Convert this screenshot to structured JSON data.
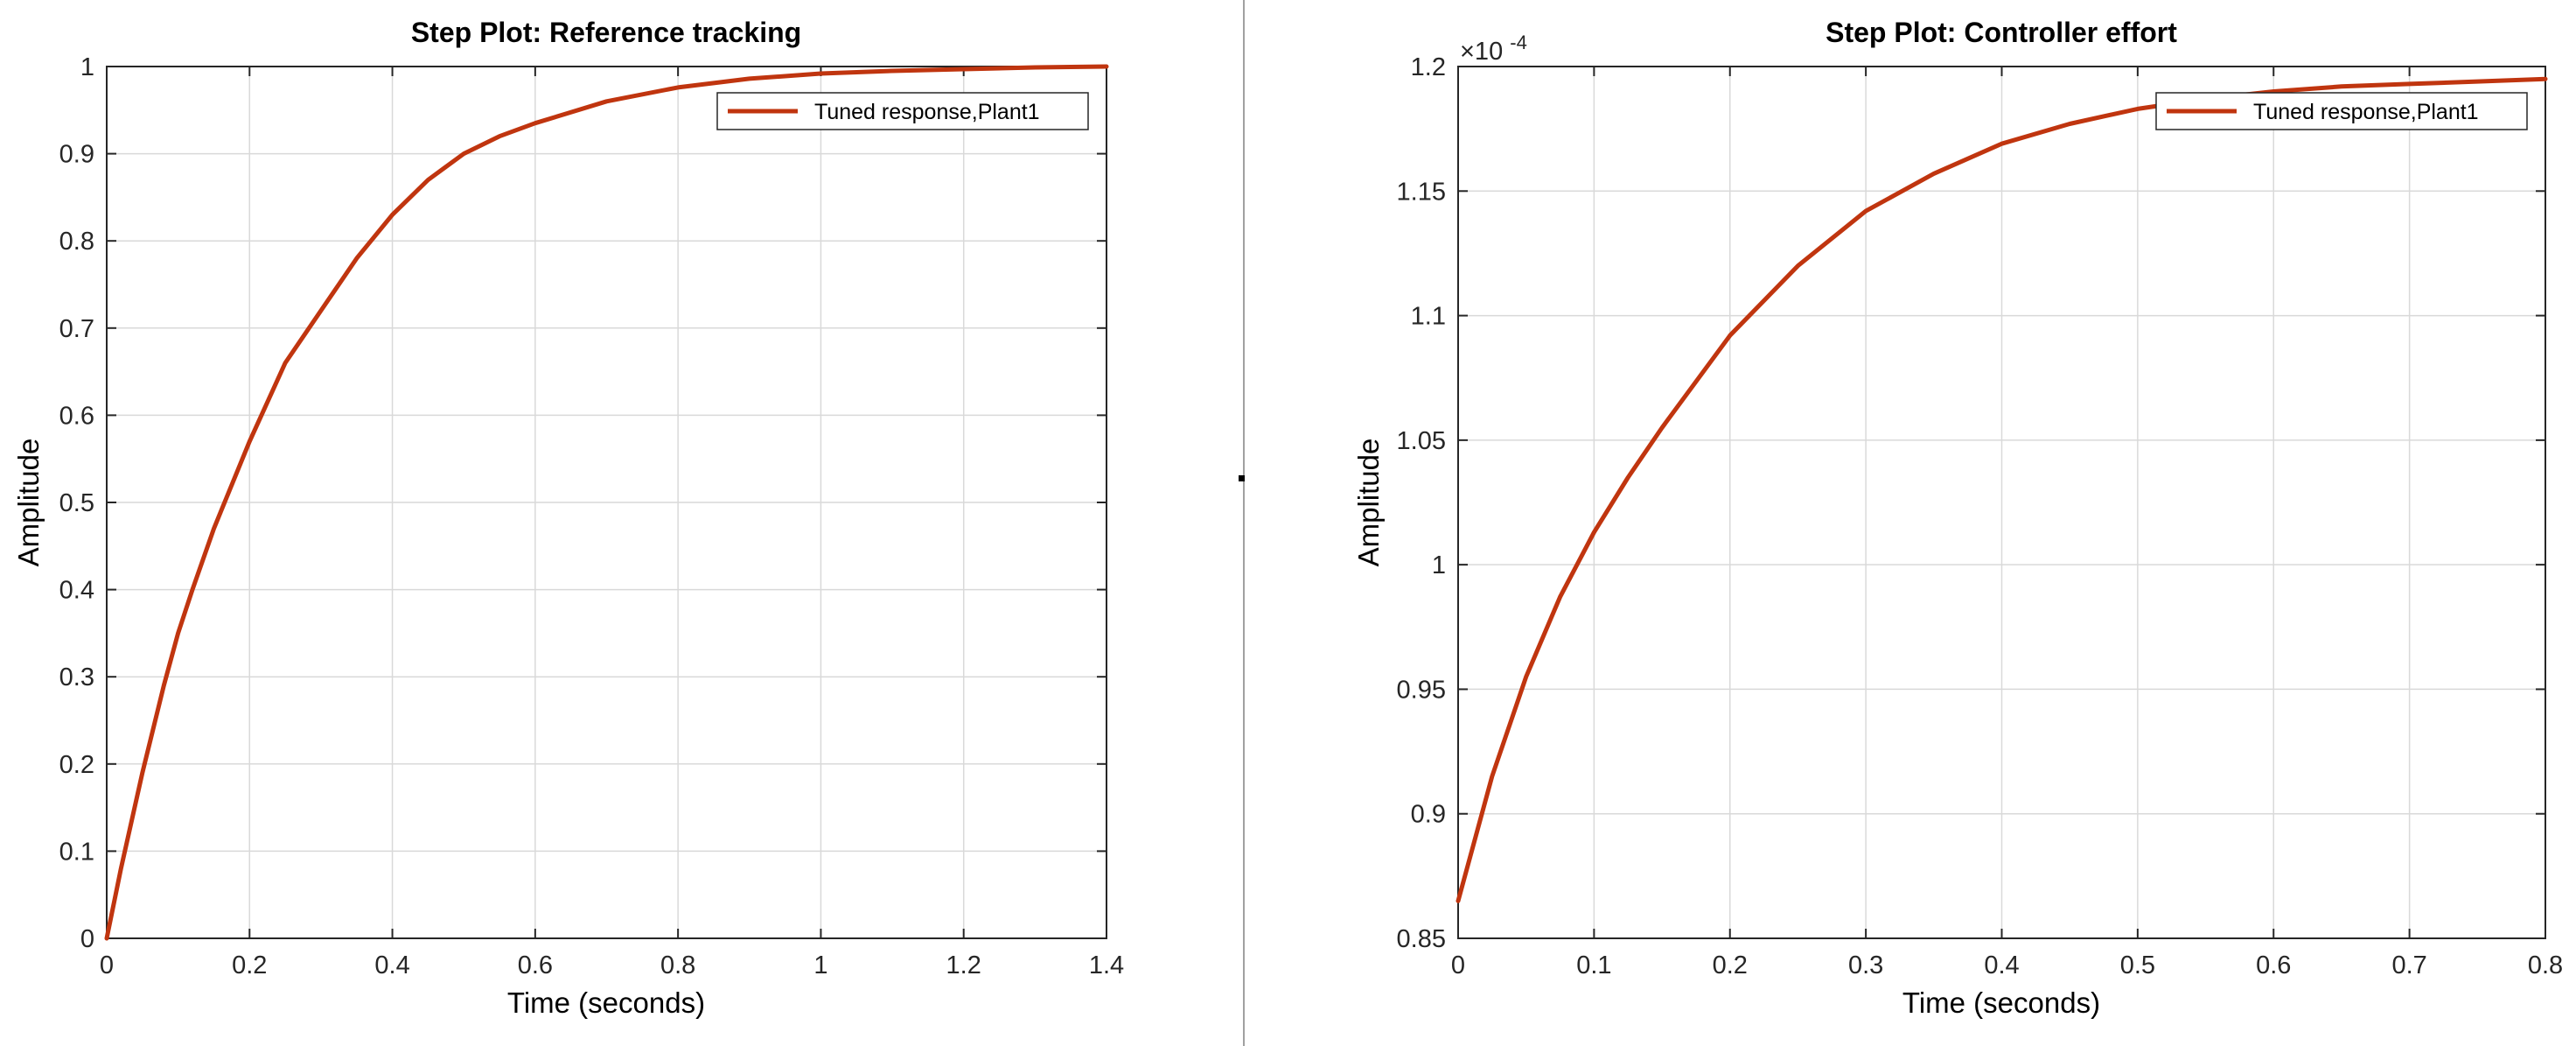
{
  "chart_data": [
    {
      "type": "line",
      "title": "Step Plot: Reference tracking",
      "xlabel": "Time (seconds)",
      "ylabel": "Amplitude",
      "xlim": [
        0,
        1.4
      ],
      "ylim": [
        0,
        1
      ],
      "xticks": [
        "0",
        "0.2",
        "0.4",
        "0.6",
        "0.8",
        "1",
        "1.2",
        "1.4"
      ],
      "yticks": [
        "0",
        "0.1",
        "0.2",
        "0.3",
        "0.4",
        "0.5",
        "0.6",
        "0.7",
        "0.8",
        "0.9",
        "1"
      ],
      "grid": true,
      "legend": {
        "position": "top-right",
        "entries": [
          "Tuned response,Plant1"
        ]
      },
      "series": [
        {
          "name": "Tuned response,Plant1",
          "color": "#c0350f",
          "x": [
            0,
            0.02,
            0.05,
            0.08,
            0.1,
            0.12,
            0.15,
            0.2,
            0.25,
            0.3,
            0.35,
            0.4,
            0.45,
            0.5,
            0.55,
            0.6,
            0.7,
            0.8,
            0.9,
            1.0,
            1.1,
            1.2,
            1.3,
            1.4
          ],
          "y": [
            0,
            0.08,
            0.19,
            0.29,
            0.35,
            0.4,
            0.47,
            0.57,
            0.66,
            0.72,
            0.78,
            0.83,
            0.87,
            0.9,
            0.92,
            0.935,
            0.96,
            0.976,
            0.986,
            0.992,
            0.995,
            0.997,
            0.999,
            1.0
          ]
        }
      ]
    },
    {
      "type": "line",
      "title": "Step Plot: Controller effort",
      "xlabel": "Time (seconds)",
      "ylabel": "Amplitude",
      "exponent_label": "×10^-4",
      "exponent_base": "×10",
      "exponent_power": "-4",
      "xlim": [
        0,
        0.8
      ],
      "ylim": [
        0.85,
        1.2
      ],
      "xticks": [
        "0",
        "0.1",
        "0.2",
        "0.3",
        "0.4",
        "0.5",
        "0.6",
        "0.7",
        "0.8"
      ],
      "yticks": [
        "0.85",
        "0.9",
        "0.95",
        "1",
        "1.05",
        "1.1",
        "1.15",
        "1.2"
      ],
      "grid": true,
      "legend": {
        "position": "top-right",
        "entries": [
          "Tuned response,Plant1"
        ]
      },
      "series": [
        {
          "name": "Tuned response,Plant1",
          "color": "#c0350f",
          "x": [
            0,
            0.025,
            0.05,
            0.075,
            0.1,
            0.125,
            0.15,
            0.2,
            0.25,
            0.3,
            0.35,
            0.4,
            0.45,
            0.5,
            0.55,
            0.6,
            0.65,
            0.7,
            0.75,
            0.8
          ],
          "y": [
            0.865,
            0.915,
            0.955,
            0.987,
            1.013,
            1.035,
            1.055,
            1.092,
            1.12,
            1.142,
            1.157,
            1.169,
            1.177,
            1.183,
            1.187,
            1.19,
            1.192,
            1.193,
            1.194,
            1.195
          ]
        }
      ]
    }
  ]
}
